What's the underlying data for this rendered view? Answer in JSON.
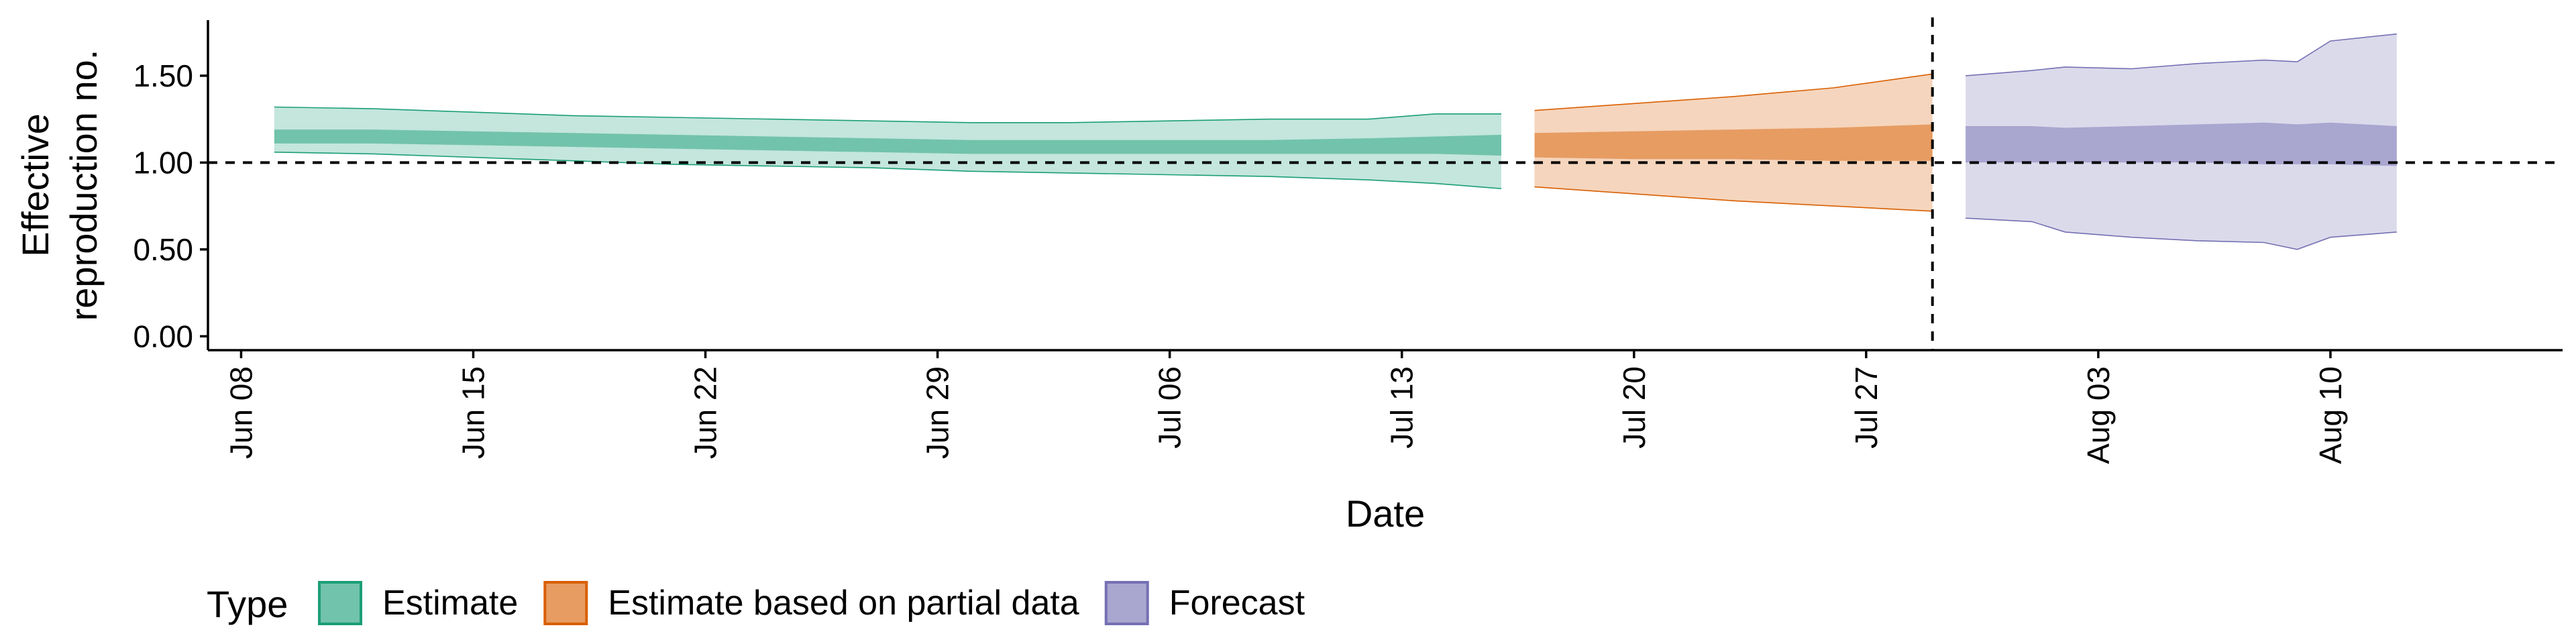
{
  "chart_data": {
    "type": "area",
    "title": "",
    "xlabel": "Date",
    "ylabel": "Effective\nreproduction no.",
    "x_ticks": [
      "Jun 08",
      "Jun 15",
      "Jun 22",
      "Jun 29",
      "Jul 06",
      "Jul 13",
      "Jul 20",
      "Jul 27",
      "Aug 03",
      "Aug 10"
    ],
    "y_ticks": [
      "0.00",
      "0.50",
      "1.00",
      "1.50"
    ],
    "xlim": [
      "2020-06-07",
      "2020-08-17"
    ],
    "ylim": [
      -0.08,
      1.82
    ],
    "reference_line_y": 1.0,
    "reference_line_x": "2020-07-29",
    "legend": {
      "title": "Type",
      "position": "bottom-left"
    },
    "grid": false,
    "series": [
      {
        "name": "Estimate",
        "fill": "#1b9e77",
        "points": [
          {
            "date": "2020-06-09",
            "lower_90": 1.06,
            "lower_50": 1.11,
            "upper_50": 1.19,
            "upper_90": 1.32
          },
          {
            "date": "2020-06-12",
            "lower_90": 1.05,
            "lower_50": 1.11,
            "upper_50": 1.19,
            "upper_90": 1.31
          },
          {
            "date": "2020-06-15",
            "lower_90": 1.03,
            "lower_50": 1.1,
            "upper_50": 1.18,
            "upper_90": 1.29
          },
          {
            "date": "2020-06-18",
            "lower_90": 1.01,
            "lower_50": 1.09,
            "upper_50": 1.17,
            "upper_90": 1.27
          },
          {
            "date": "2020-06-21",
            "lower_90": 0.99,
            "lower_50": 1.08,
            "upper_50": 1.16,
            "upper_90": 1.26
          },
          {
            "date": "2020-06-24",
            "lower_90": 0.98,
            "lower_50": 1.07,
            "upper_50": 1.15,
            "upper_90": 1.25
          },
          {
            "date": "2020-06-27",
            "lower_90": 0.97,
            "lower_50": 1.06,
            "upper_50": 1.14,
            "upper_90": 1.24
          },
          {
            "date": "2020-06-30",
            "lower_90": 0.95,
            "lower_50": 1.05,
            "upper_50": 1.13,
            "upper_90": 1.23
          },
          {
            "date": "2020-07-03",
            "lower_90": 0.94,
            "lower_50": 1.05,
            "upper_50": 1.13,
            "upper_90": 1.23
          },
          {
            "date": "2020-07-06",
            "lower_90": 0.93,
            "lower_50": 1.05,
            "upper_50": 1.13,
            "upper_90": 1.24
          },
          {
            "date": "2020-07-09",
            "lower_90": 0.92,
            "lower_50": 1.05,
            "upper_50": 1.13,
            "upper_90": 1.25
          },
          {
            "date": "2020-07-12",
            "lower_90": 0.9,
            "lower_50": 1.05,
            "upper_50": 1.14,
            "upper_90": 1.25
          },
          {
            "date": "2020-07-14",
            "lower_90": 0.88,
            "lower_50": 1.05,
            "upper_50": 1.15,
            "upper_90": 1.28
          },
          {
            "date": "2020-07-16",
            "lower_90": 0.85,
            "lower_50": 1.04,
            "upper_50": 1.16,
            "upper_90": 1.28
          }
        ]
      },
      {
        "name": "Estimate based on partial data",
        "fill": "#d95f02",
        "points": [
          {
            "date": "2020-07-17",
            "lower_90": 0.86,
            "lower_50": 1.03,
            "upper_50": 1.17,
            "upper_90": 1.3
          },
          {
            "date": "2020-07-20",
            "lower_90": 0.82,
            "lower_50": 1.02,
            "upper_50": 1.18,
            "upper_90": 1.34
          },
          {
            "date": "2020-07-23",
            "lower_90": 0.78,
            "lower_50": 1.02,
            "upper_50": 1.19,
            "upper_90": 1.38
          },
          {
            "date": "2020-07-26",
            "lower_90": 0.75,
            "lower_50": 1.01,
            "upper_50": 1.2,
            "upper_90": 1.43
          },
          {
            "date": "2020-07-29",
            "lower_90": 0.72,
            "lower_50": 1.01,
            "upper_50": 1.22,
            "upper_90": 1.51
          }
        ]
      },
      {
        "name": "Forecast",
        "fill": "#7570b3",
        "points": [
          {
            "date": "2020-07-30",
            "lower_90": 0.68,
            "lower_50": 1.0,
            "upper_50": 1.21,
            "upper_90": 1.5
          },
          {
            "date": "2020-08-01",
            "lower_90": 0.66,
            "lower_50": 1.0,
            "upper_50": 1.21,
            "upper_90": 1.53
          },
          {
            "date": "2020-08-02",
            "lower_90": 0.6,
            "lower_50": 1.0,
            "upper_50": 1.2,
            "upper_90": 1.55
          },
          {
            "date": "2020-08-04",
            "lower_90": 0.57,
            "lower_50": 1.0,
            "upper_50": 1.21,
            "upper_90": 1.54
          },
          {
            "date": "2020-08-06",
            "lower_90": 0.55,
            "lower_50": 1.0,
            "upper_50": 1.22,
            "upper_90": 1.57
          },
          {
            "date": "2020-08-08",
            "lower_90": 0.54,
            "lower_50": 0.99,
            "upper_50": 1.23,
            "upper_90": 1.59
          },
          {
            "date": "2020-08-09",
            "lower_90": 0.5,
            "lower_50": 0.99,
            "upper_50": 1.22,
            "upper_90": 1.58
          },
          {
            "date": "2020-08-10",
            "lower_90": 0.57,
            "lower_50": 0.99,
            "upper_50": 1.23,
            "upper_90": 1.7
          },
          {
            "date": "2020-08-12",
            "lower_90": 0.6,
            "lower_50": 0.98,
            "upper_50": 1.21,
            "upper_90": 1.74
          }
        ]
      }
    ]
  }
}
